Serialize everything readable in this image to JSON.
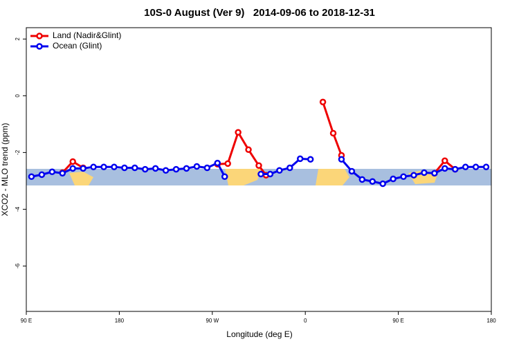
{
  "chart_data": {
    "type": "line",
    "title": "10S-0 August (Ver 9)   2014-09-06 to 2018-12-31",
    "x_label": "Longitude (deg E)",
    "y_label": "XCO2 - MLO trend (ppm)",
    "xlim": [
      90,
      540
    ],
    "ylim": [
      -7.6,
      2.4
    ],
    "xticks": [
      {
        "value": 90,
        "label": "90 E"
      },
      180,
      {
        "value": 270,
        "label": "90 W"
      },
      {
        "value": 360,
        "label": "0"
      },
      {
        "value": 450,
        "label": "90 E"
      },
      {
        "value": 540,
        "label": "180"
      }
    ],
    "yticks": [
      2,
      0,
      -2,
      -4,
      -6
    ],
    "legend": "top-left",
    "series": [
      {
        "name": "Land (Nadir&Glint)",
        "color": "#ee0000",
        "x": [
          125,
          135,
          145,
          null,
          275,
          285,
          295,
          305,
          315,
          322,
          null,
          377,
          387,
          395,
          null,
          485,
          495,
          505
        ],
        "values": [
          -2.71,
          -2.32,
          -2.54,
          null,
          -2.41,
          -2.39,
          -1.29,
          -1.9,
          -2.46,
          -2.8,
          null,
          -0.22,
          -1.32,
          -2.1,
          null,
          -2.73,
          -2.29,
          -2.59
        ]
      },
      {
        "name": "Ocean (Glint)",
        "color": "#0000ee",
        "x": [
          95,
          105,
          115,
          125,
          135,
          145,
          155,
          165,
          175,
          185,
          195,
          205,
          215,
          225,
          235,
          245,
          255,
          265,
          275,
          282,
          null,
          317,
          326,
          335,
          345,
          355,
          365,
          null,
          395,
          405,
          415,
          425,
          435,
          445,
          455,
          465,
          475,
          485,
          495,
          505,
          515,
          525,
          535
        ],
        "values": [
          -2.85,
          -2.78,
          -2.68,
          -2.73,
          -2.56,
          -2.56,
          -2.51,
          -2.51,
          -2.51,
          -2.54,
          -2.54,
          -2.59,
          -2.56,
          -2.63,
          -2.59,
          -2.56,
          -2.49,
          -2.54,
          -2.37,
          -2.85,
          null,
          -2.76,
          -2.76,
          -2.63,
          -2.54,
          -2.22,
          -2.24,
          null,
          -2.24,
          -2.66,
          -2.95,
          -3.02,
          -3.1,
          -2.93,
          -2.85,
          -2.8,
          -2.71,
          -2.73,
          -2.56,
          -2.59,
          -2.51,
          -2.51,
          -2.51
        ]
      }
    ]
  }
}
